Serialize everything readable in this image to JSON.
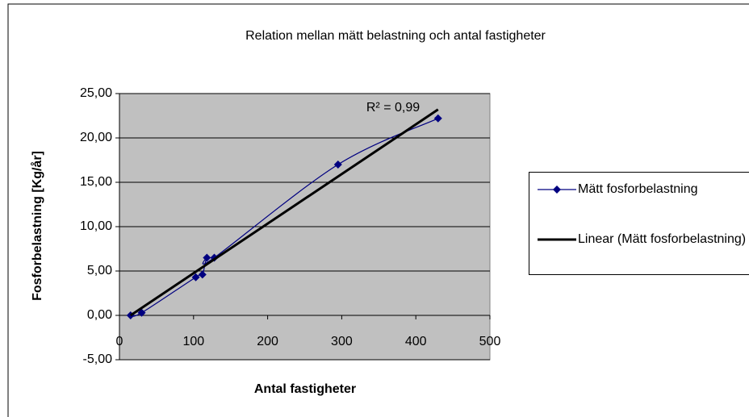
{
  "chart_data": {
    "type": "scatter",
    "title": "Relation mellan mätt belastning och antal fastigheter",
    "x_label": "Antal fastigheter",
    "y_label": "Fosforbelastning [Kg/år]",
    "annotation": "R² = 0,99",
    "series": [
      {
        "name": "Mätt fosforbelastning",
        "color": "#000080",
        "style": "smooth-markers",
        "x": [
          15,
          30,
          103,
          112,
          118,
          128,
          295,
          430
        ],
        "values": [
          0.0,
          0.3,
          4.3,
          4.6,
          6.5,
          6.5,
          17.0,
          22.2
        ]
      },
      {
        "name": "Linear (Mätt fosforbelastning)",
        "color": "#000000",
        "style": "trendline",
        "x": [
          15,
          430
        ],
        "values": [
          0.0,
          23.2
        ]
      }
    ],
    "xlim": [
      0,
      500
    ],
    "xticks": [
      0,
      100,
      200,
      300,
      400,
      500
    ],
    "ylim": [
      -5,
      25
    ],
    "yticks": [
      {
        "value": -5,
        "label": "-5,00"
      },
      {
        "value": 0,
        "label": "0,00"
      },
      {
        "value": 5,
        "label": "5,00"
      },
      {
        "value": 10,
        "label": "10,00"
      },
      {
        "value": 15,
        "label": "15,00"
      },
      {
        "value": 20,
        "label": "20,00"
      },
      {
        "value": 25,
        "label": "25,00"
      }
    ],
    "grid": true,
    "legend": "right",
    "plot_background": "#c0c0c0"
  }
}
